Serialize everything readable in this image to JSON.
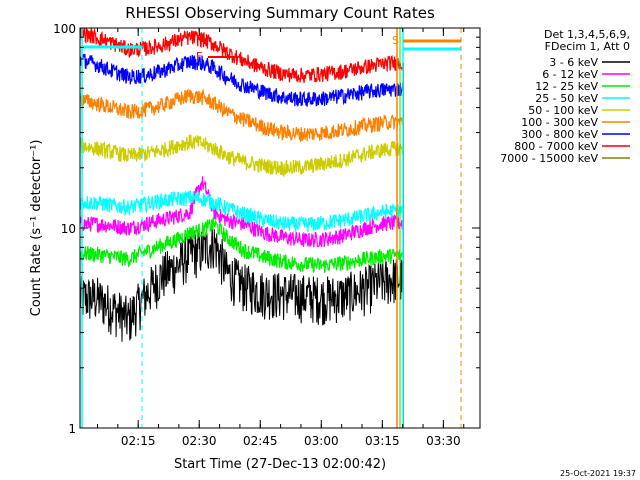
{
  "chart_data": {
    "type": "line",
    "title": "RHESSI Observing Summary Count Rates",
    "xlabel": "Start Time (27-Dec-13 02:00:42)",
    "ylabel": "Count Rate (s⁻¹ detector⁻¹)",
    "y_scale": "log",
    "ylim": [
      1,
      100
    ],
    "xlim": [
      "02:00:42",
      "03:39:00"
    ],
    "x_tick_labels": [
      "02:15",
      "02:30",
      "02:45",
      "03:00",
      "03:15",
      "03:30"
    ],
    "x_tick_minutes": [
      15,
      30,
      45,
      60,
      75,
      90
    ],
    "y_tick_labels": [
      "1",
      "10",
      "100"
    ],
    "y_tick_values": [
      1,
      10,
      100
    ],
    "grid": false,
    "legend_placement": "right",
    "legend_header": [
      "Det 1,3,4,5,6,9,",
      "FDecim 1, Att 0"
    ],
    "flag_labels": [
      "S",
      "F"
    ],
    "timestamp": "25-Oct-2021 19:37",
    "x_minutes": [
      0,
      4,
      8,
      12,
      16,
      20,
      24,
      27,
      30,
      33,
      36,
      40,
      45,
      50,
      55,
      60,
      65,
      70,
      74,
      77,
      79.5
    ],
    "series": [
      {
        "name": "3 - 6 keV",
        "color": "#000000",
        "values": [
          4.5,
          4.5,
          4.0,
          3.5,
          4.6,
          5.8,
          6.5,
          7.5,
          7.8,
          8.5,
          6.0,
          5.2,
          4.8,
          4.7,
          4.6,
          4.5,
          4.6,
          5.0,
          5.4,
          5.6,
          5.6
        ]
      },
      {
        "name": "6 - 12 keV",
        "color": "#ff00ff",
        "values": [
          10.5,
          10.5,
          10.3,
          10.0,
          10.5,
          11.0,
          11.5,
          12.0,
          17.0,
          12.0,
          11.0,
          10.5,
          9.5,
          9.0,
          8.7,
          8.8,
          9.2,
          10.0,
          10.5,
          10.6,
          10.6
        ]
      },
      {
        "name": "12 - 25 keV",
        "color": "#00ee00",
        "values": [
          7.5,
          7.4,
          7.2,
          7.0,
          7.6,
          8.2,
          8.8,
          9.5,
          9.8,
          10.5,
          9.0,
          7.8,
          7.2,
          6.8,
          6.6,
          6.5,
          6.7,
          7.0,
          7.2,
          7.3,
          7.3
        ]
      },
      {
        "name": "25 - 50 keV",
        "color": "#00ffff",
        "values": [
          13.5,
          13.4,
          13.0,
          12.7,
          13.2,
          13.7,
          14.0,
          14.2,
          14.0,
          13.4,
          12.6,
          11.8,
          11.0,
          10.5,
          10.4,
          10.6,
          11.0,
          11.5,
          12.0,
          12.2,
          12.2
        ]
      },
      {
        "name": "50 - 100 keV",
        "color": "#cccc00",
        "values": [
          26,
          25,
          24,
          23,
          23.5,
          24.5,
          26,
          27,
          26.5,
          25,
          23,
          21.5,
          20.5,
          20,
          20.2,
          21,
          22,
          23.5,
          24.5,
          25,
          25
        ]
      },
      {
        "name": "100 - 300 keV",
        "color": "#ff8000",
        "values": [
          44,
          42,
          40,
          38,
          39,
          41,
          44,
          46,
          45,
          42,
          38,
          35,
          32,
          30,
          29.5,
          30,
          31,
          32.5,
          33.5,
          34,
          34
        ]
      },
      {
        "name": "300 - 800 keV",
        "color": "#0000ff",
        "values": [
          70,
          66,
          61,
          57,
          58,
          61,
          65,
          68,
          67,
          63,
          57,
          52,
          48,
          45,
          44,
          44.5,
          46,
          48,
          49,
          49.5,
          49.5
        ]
      },
      {
        "name": "800 - 7000 keV",
        "color": "#ff0000",
        "values": [
          95,
          90,
          84,
          78,
          79,
          82,
          87,
          90,
          88,
          83,
          76,
          69,
          63,
          59,
          58,
          59,
          61,
          64,
          66,
          67,
          67
        ]
      },
      {
        "name": "7000 - 15000 keV",
        "color": "#808000",
        "values": []
      }
    ]
  }
}
